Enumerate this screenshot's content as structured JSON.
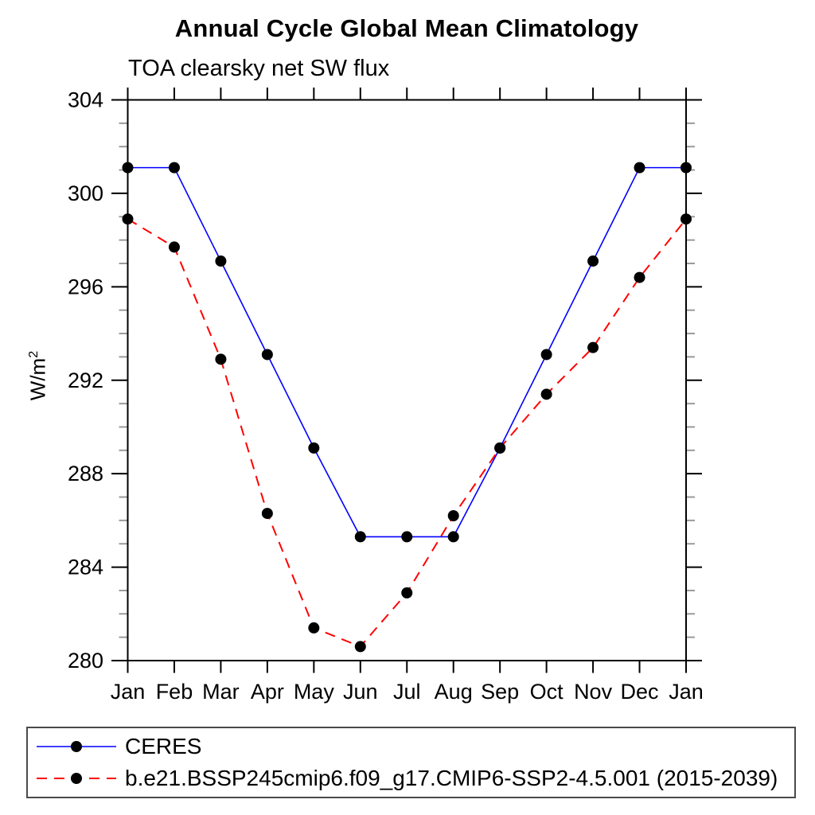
{
  "figure": {
    "title": "Annual Cycle Global Mean Climatology",
    "subtitle": "TOA clearsky net SW flux"
  },
  "y_axis": {
    "label_base": "W/m",
    "label_exponent": "2",
    "tick_labels": [
      "280",
      "284",
      "288",
      "292",
      "296",
      "300",
      "304"
    ]
  },
  "chart_data": {
    "type": "line",
    "title": "Annual Cycle Global Mean Climatology",
    "subtitle": "TOA clearsky net SW flux",
    "ylabel": "W/m²",
    "xlabel": "",
    "x_tick_labels": [
      "Jan",
      "Feb",
      "Mar",
      "Apr",
      "May",
      "Jun",
      "Jul",
      "Aug",
      "Sep",
      "Oct",
      "Nov",
      "Dec",
      "Jan"
    ],
    "ylim": [
      280,
      304
    ],
    "y_major_ticks": [
      280,
      284,
      288,
      292,
      296,
      300,
      304
    ],
    "y_minor_step": 1,
    "grid": false,
    "legend_position": "bottom-box",
    "marker": {
      "shape": "circle",
      "color": "#000000",
      "radius": 7
    },
    "axis_color": "#000000",
    "minor_tick_color": "#9a9a9a",
    "series": [
      {
        "name": "CERES",
        "color": "#0000ff",
        "style": "solid",
        "values": [
          301.1,
          301.1,
          297.1,
          293.1,
          289.1,
          285.3,
          285.3,
          285.3,
          289.1,
          293.1,
          297.1,
          301.1,
          301.1
        ]
      },
      {
        "name": "b.e21.BSSP245cmip6.f09_g17.CMIP6-SSP2-4.5.001 (2015-2039)",
        "color": "#ff0000",
        "style": "dashed",
        "values": [
          298.9,
          297.7,
          292.9,
          286.3,
          281.4,
          280.6,
          282.9,
          286.2,
          289.1,
          291.4,
          293.4,
          296.4,
          298.9
        ]
      }
    ]
  }
}
